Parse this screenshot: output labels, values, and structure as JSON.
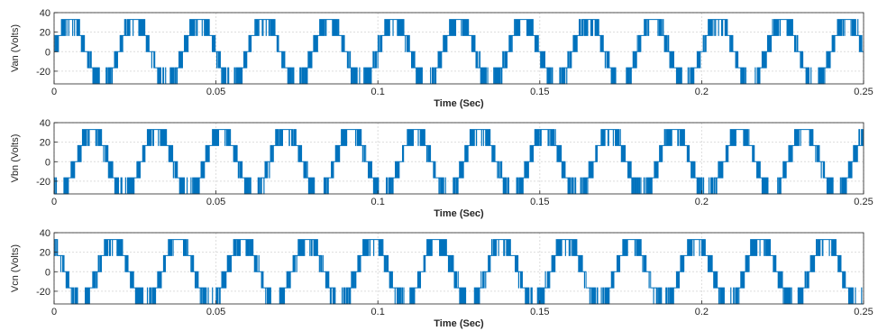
{
  "chart_data": [
    {
      "type": "line",
      "id": "van",
      "ylabel": "Van (Volts)",
      "xlabel": "Time (Sec)",
      "xlim": [
        0,
        0.25
      ],
      "ylim": [
        -33,
        40
      ],
      "xticks": [
        0,
        0.05,
        0.1,
        0.15,
        0.2,
        0.25
      ],
      "xtick_labels": [
        "0",
        "0.05",
        "0.1",
        "0.15",
        "0.2",
        "0.25"
      ],
      "yticks": [
        -20,
        0,
        20,
        40
      ],
      "ytick_labels": [
        "-20",
        "0",
        "20",
        "40"
      ],
      "grid": true,
      "series": [
        {
          "fundamental_hz": 50,
          "phase_deg": 0,
          "levels": [
            -33,
            -16.5,
            0,
            16.5,
            33
          ],
          "color": "#0072BD"
        }
      ]
    },
    {
      "type": "line",
      "id": "vbn",
      "ylabel": "Vbn (Volts)",
      "xlabel": "Time (Sec)",
      "xlim": [
        0,
        0.25
      ],
      "ylim": [
        -33,
        40
      ],
      "xticks": [
        0,
        0.05,
        0.1,
        0.15,
        0.2,
        0.25
      ],
      "xtick_labels": [
        "0",
        "0.05",
        "0.1",
        "0.15",
        "0.2",
        "0.25"
      ],
      "yticks": [
        -20,
        0,
        20,
        40
      ],
      "ytick_labels": [
        "-20",
        "0",
        "20",
        "40"
      ],
      "grid": true,
      "series": [
        {
          "fundamental_hz": 50,
          "phase_deg": -120,
          "levels": [
            -33,
            -16.5,
            0,
            16.5,
            33
          ],
          "color": "#0072BD"
        }
      ]
    },
    {
      "type": "line",
      "id": "vcn",
      "ylabel": "Vcn (Volts)",
      "xlabel": "Time (Sec)",
      "xlim": [
        0,
        0.25
      ],
      "ylim": [
        -33,
        40
      ],
      "xticks": [
        0,
        0.05,
        0.1,
        0.15,
        0.2,
        0.25
      ],
      "xtick_labels": [
        "0",
        "0.05",
        "0.1",
        "0.15",
        "0.2",
        "0.25"
      ],
      "yticks": [
        -20,
        0,
        20,
        40
      ],
      "ytick_labels": [
        "-20",
        "0",
        "20",
        "40"
      ],
      "grid": true,
      "series": [
        {
          "fundamental_hz": 50,
          "phase_deg": 120,
          "levels": [
            -33,
            -16.5,
            0,
            16.5,
            33
          ],
          "color": "#0072BD"
        }
      ]
    }
  ]
}
